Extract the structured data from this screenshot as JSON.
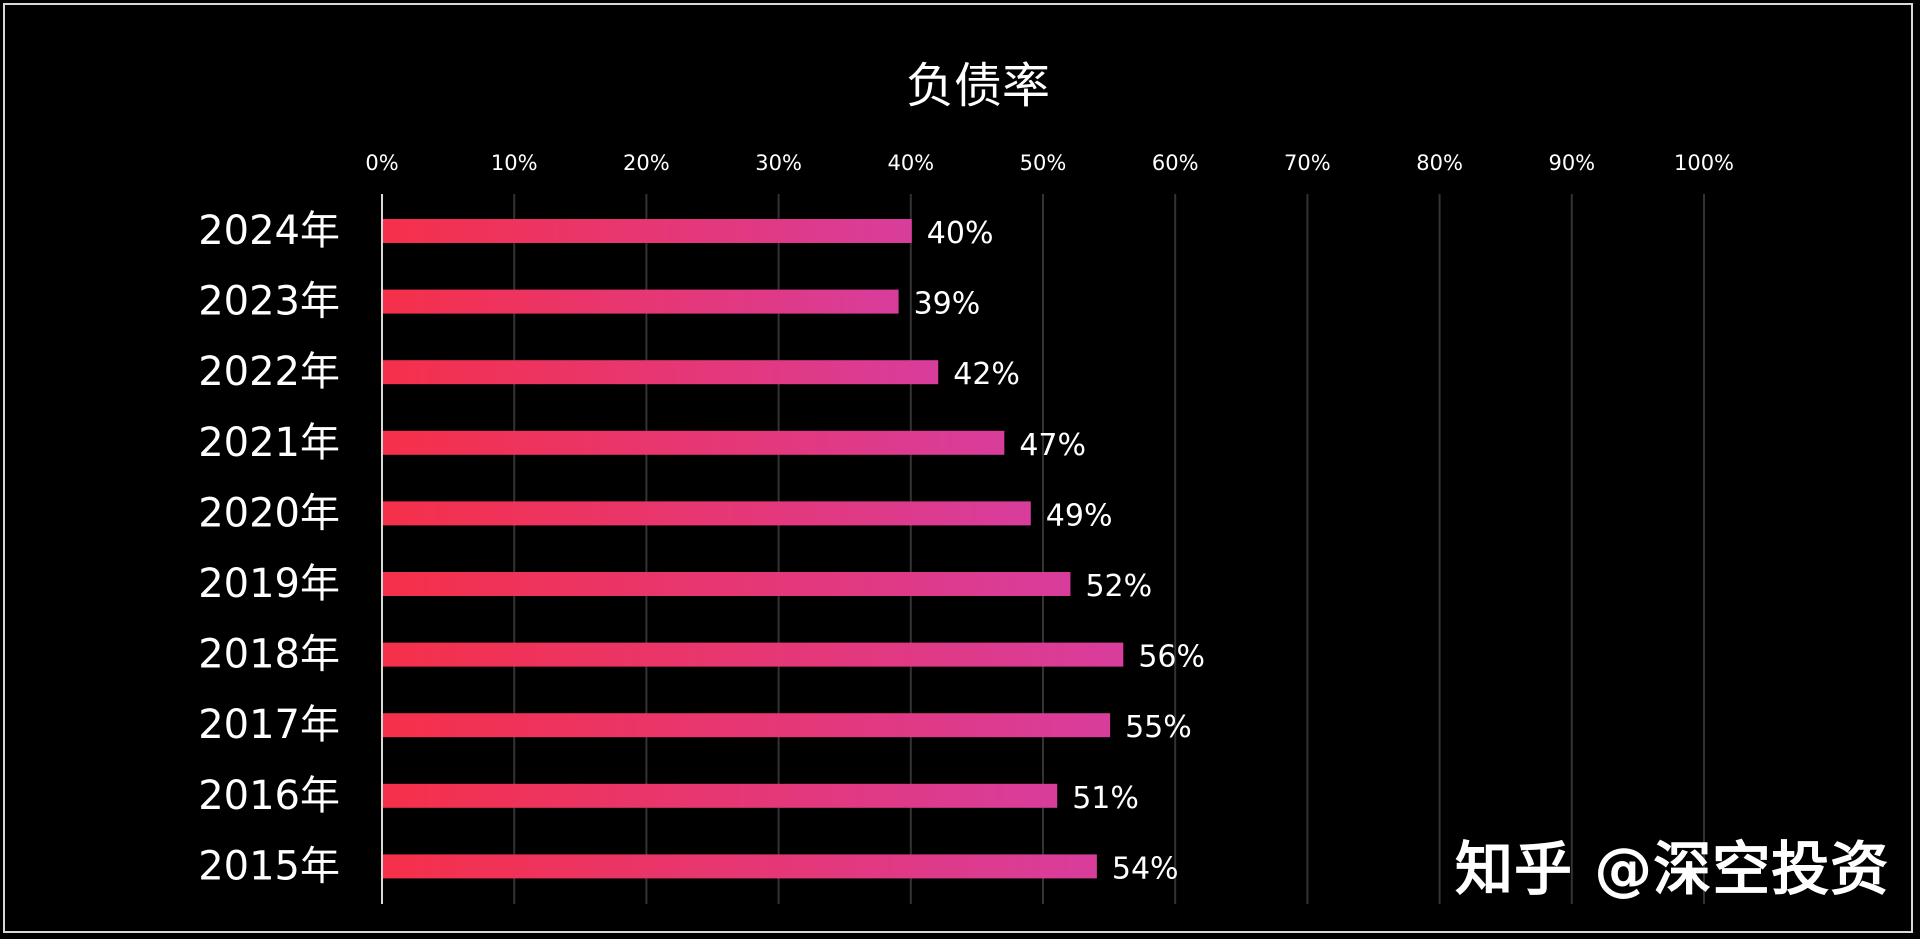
{
  "chart_data": {
    "type": "bar",
    "orientation": "horizontal",
    "title": "负债率",
    "categories": [
      "2024年",
      "2023年",
      "2022年",
      "2021年",
      "2020年",
      "2019年",
      "2018年",
      "2017年",
      "2016年",
      "2015年"
    ],
    "values": [
      40,
      39,
      42,
      47,
      49,
      52,
      56,
      55,
      51,
      54
    ],
    "value_labels": [
      "40%",
      "39%",
      "42%",
      "47%",
      "49%",
      "52%",
      "56%",
      "55%",
      "51%",
      "54%"
    ],
    "xlim": [
      0,
      100
    ],
    "x_ticks": [
      "0%",
      "10%",
      "20%",
      "30%",
      "40%",
      "50%",
      "60%",
      "70%",
      "80%",
      "90%",
      "100%"
    ],
    "x_axis_position": "top",
    "grid": true,
    "colors": {
      "bar_start": "#f5304a",
      "bar_end": "#d83d9c",
      "background": "#000000",
      "gridline": "#333333",
      "text": "#ffffff"
    }
  },
  "watermark": "知乎 @深空投资"
}
